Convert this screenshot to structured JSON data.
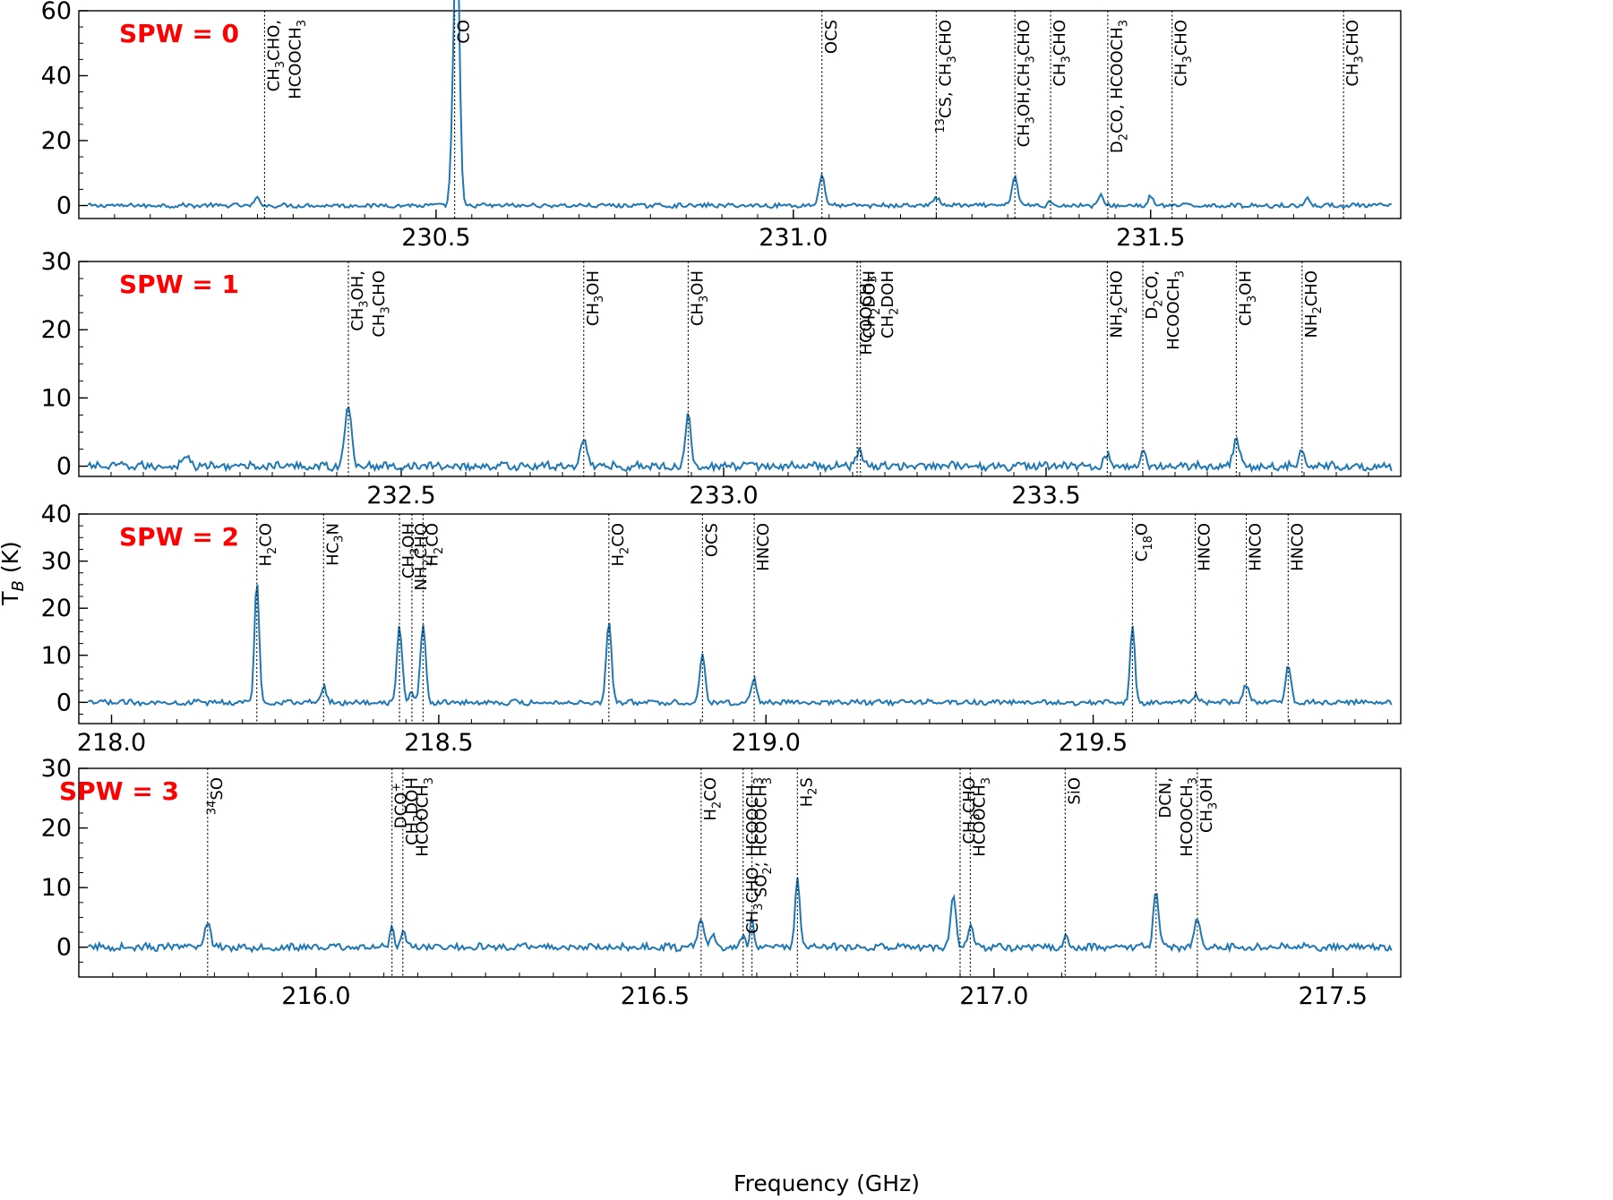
{
  "figure": {
    "xlabel": "Frequency (GHz)",
    "ylabel_main": "T",
    "ylabel_sub": "B",
    "ylabel_unit": " (K)"
  },
  "chart_data": [
    {
      "type": "line",
      "panel_label": "SPW = 0",
      "xlim": [
        230.0,
        231.85
      ],
      "ylim": [
        -4,
        60
      ],
      "xticks": [
        230.5,
        231.0,
        231.5
      ],
      "xtick_labels": [
        "230.5",
        "231.0",
        "231.5"
      ],
      "yticks": [
        0,
        20,
        40,
        60
      ],
      "ytick_labels": [
        "0",
        "20",
        "40",
        "60"
      ],
      "peaks": [
        {
          "x": 230.53,
          "y": 58,
          "w": 0.0035
        },
        {
          "x": 230.526,
          "y": 40,
          "w": 0.004
        },
        {
          "x": 231.04,
          "y": 9.5,
          "w": 0.004
        },
        {
          "x": 231.31,
          "y": 9,
          "w": 0.004
        },
        {
          "x": 231.43,
          "y": 3.5,
          "w": 0.003
        },
        {
          "x": 231.5,
          "y": 3,
          "w": 0.003
        },
        {
          "x": 231.72,
          "y": 2.5,
          "w": 0.003
        },
        {
          "x": 230.25,
          "y": 2,
          "w": 0.004
        },
        {
          "x": 231.2,
          "y": 2,
          "w": 0.006
        },
        {
          "x": 231.36,
          "y": 1.5,
          "w": 0.003
        }
      ],
      "noise": 0.6,
      "lines": [
        {
          "x": 230.26,
          "text": "CH3CHO,\nHCOOCH3"
        },
        {
          "x": 230.526,
          "text": "CO"
        },
        {
          "x": 231.04,
          "text": "OCS"
        },
        {
          "x": 231.2,
          "text": "13CS, CH3CHO"
        },
        {
          "x": 231.31,
          "text": "CH3OH,CH3CHO"
        },
        {
          "x": 231.36,
          "text": "CH3CHO"
        },
        {
          "x": 231.44,
          "text": "D2CO,  HCOOCH3"
        },
        {
          "x": 231.53,
          "text": "CH3CHO"
        },
        {
          "x": 231.77,
          "text": "CH3CHO"
        }
      ]
    },
    {
      "type": "line",
      "panel_label": "SPW = 1",
      "xlim": [
        232.0,
        234.05
      ],
      "ylim": [
        -1.5,
        30
      ],
      "xticks": [
        232.5,
        233.0,
        233.5
      ],
      "xtick_labels": [
        "232.5",
        "233.0",
        "233.5"
      ],
      "yticks": [
        0,
        10,
        20,
        30
      ],
      "ytick_labels": [
        "0",
        "10",
        "20",
        "30"
      ],
      "peaks": [
        {
          "x": 232.418,
          "y": 8.8,
          "w": 0.005
        },
        {
          "x": 232.783,
          "y": 4,
          "w": 0.005
        },
        {
          "x": 232.945,
          "y": 8,
          "w": 0.004
        },
        {
          "x": 233.21,
          "y": 2,
          "w": 0.006
        },
        {
          "x": 233.595,
          "y": 1.5,
          "w": 0.005
        },
        {
          "x": 233.65,
          "y": 2.5,
          "w": 0.004
        },
        {
          "x": 233.795,
          "y": 4,
          "w": 0.005
        },
        {
          "x": 233.897,
          "y": 2.5,
          "w": 0.004
        },
        {
          "x": 232.165,
          "y": 1.5,
          "w": 0.006
        }
      ],
      "noise": 0.55,
      "lines": [
        {
          "x": 232.418,
          "text": "CH3OH,\nCH3CHO"
        },
        {
          "x": 232.783,
          "text": "CH3OH"
        },
        {
          "x": 232.945,
          "text": "CH3OH"
        },
        {
          "x": 233.207,
          "text": "HCOOCH3,\nCH2DOH"
        },
        {
          "x": 233.212,
          "text": "CH2DOH"
        },
        {
          "x": 233.595,
          "text": "NH2CHO"
        },
        {
          "x": 233.65,
          "text": "D2CO,\nHCOOCH3"
        },
        {
          "x": 233.795,
          "text": "CH3OH"
        },
        {
          "x": 233.897,
          "text": "NH2CHO"
        }
      ]
    },
    {
      "type": "line",
      "panel_label": "SPW = 2",
      "xlim": [
        217.95,
        219.97
      ],
      "ylim": [
        -4.5,
        40
      ],
      "xticks": [
        218.0,
        218.5,
        219.0,
        219.5
      ],
      "xtick_labels": [
        "218.0",
        "218.5",
        "219.0",
        "219.5"
      ],
      "yticks": [
        0,
        10,
        20,
        30,
        40
      ],
      "ytick_labels": [
        "0",
        "10",
        "20",
        "30",
        "40"
      ],
      "peaks": [
        {
          "x": 218.222,
          "y": 26,
          "w": 0.0035
        },
        {
          "x": 218.324,
          "y": 3.5,
          "w": 0.004
        },
        {
          "x": 218.44,
          "y": 16,
          "w": 0.004
        },
        {
          "x": 218.459,
          "y": 2.5,
          "w": 0.003
        },
        {
          "x": 218.476,
          "y": 16.5,
          "w": 0.004
        },
        {
          "x": 218.76,
          "y": 17,
          "w": 0.004
        },
        {
          "x": 218.903,
          "y": 10.5,
          "w": 0.004
        },
        {
          "x": 218.982,
          "y": 5,
          "w": 0.004
        },
        {
          "x": 219.56,
          "y": 16.5,
          "w": 0.0035
        },
        {
          "x": 219.656,
          "y": 1.5,
          "w": 0.003
        },
        {
          "x": 219.734,
          "y": 3.5,
          "w": 0.005
        },
        {
          "x": 219.798,
          "y": 7.5,
          "w": 0.004
        }
      ],
      "noise": 0.5,
      "lines": [
        {
          "x": 218.222,
          "text": "H2CO"
        },
        {
          "x": 218.324,
          "text": "HC3N"
        },
        {
          "x": 218.44,
          "text": "CH3OH"
        },
        {
          "x": 218.459,
          "text": "NH2CHO"
        },
        {
          "x": 218.476,
          "text": "H2CO"
        },
        {
          "x": 218.76,
          "text": "H2CO"
        },
        {
          "x": 218.903,
          "text": "OCS"
        },
        {
          "x": 218.982,
          "text": "HNCO"
        },
        {
          "x": 219.56,
          "text": "C18O"
        },
        {
          "x": 219.656,
          "text": "HNCO"
        },
        {
          "x": 219.734,
          "text": "HNCO"
        },
        {
          "x": 219.798,
          "text": "HNCO"
        }
      ]
    },
    {
      "type": "line",
      "panel_label": "SPW = 3",
      "xlim": [
        215.65,
        217.6
      ],
      "ylim": [
        -5,
        30
      ],
      "xticks": [
        216.0,
        216.5,
        217.0,
        217.5
      ],
      "xtick_labels": [
        "216.0",
        "216.5",
        "217.0",
        "217.5"
      ],
      "yticks": [
        0,
        10,
        20,
        30
      ],
      "ytick_labels": [
        "0",
        "10",
        "20",
        "30"
      ],
      "peaks": [
        {
          "x": 215.84,
          "y": 4.5,
          "w": 0.004
        },
        {
          "x": 216.112,
          "y": 4,
          "w": 0.003
        },
        {
          "x": 216.128,
          "y": 2.5,
          "w": 0.004
        },
        {
          "x": 216.568,
          "y": 5,
          "w": 0.004
        },
        {
          "x": 216.585,
          "y": 2,
          "w": 0.004
        },
        {
          "x": 216.63,
          "y": 2,
          "w": 0.003
        },
        {
          "x": 216.643,
          "y": 5,
          "w": 0.003
        },
        {
          "x": 216.71,
          "y": 12,
          "w": 0.0035
        },
        {
          "x": 216.94,
          "y": 8.5,
          "w": 0.004
        },
        {
          "x": 216.965,
          "y": 3.5,
          "w": 0.004
        },
        {
          "x": 217.105,
          "y": 2,
          "w": 0.003
        },
        {
          "x": 217.239,
          "y": 9.5,
          "w": 0.004
        },
        {
          "x": 217.3,
          "y": 5,
          "w": 0.004
        }
      ],
      "noise": 0.55,
      "lines": [
        {
          "x": 215.84,
          "text": "34SO"
        },
        {
          "x": 216.112,
          "text": "DCO+,\nHCOOCH3"
        },
        {
          "x": 216.128,
          "text": "CH2DOH"
        },
        {
          "x": 216.568,
          "text": "H2CO"
        },
        {
          "x": 216.63,
          "text": "CH3CHO, HCOOCH3"
        },
        {
          "x": 216.643,
          "text": "SO2, HCOOCH3"
        },
        {
          "x": 216.71,
          "text": "H2S"
        },
        {
          "x": 216.95,
          "text": "CH3CHO"
        },
        {
          "x": 216.965,
          "text": "HCOOCH3"
        },
        {
          "x": 217.105,
          "text": "SiO"
        },
        {
          "x": 217.239,
          "text": "DCN,\nHCOOCH3"
        },
        {
          "x": 217.3,
          "text": "CH3OH"
        }
      ]
    }
  ],
  "colors": {
    "spectrum": "#1f77b4",
    "panel_label": "#ff0000",
    "marker_line": "#000000"
  }
}
